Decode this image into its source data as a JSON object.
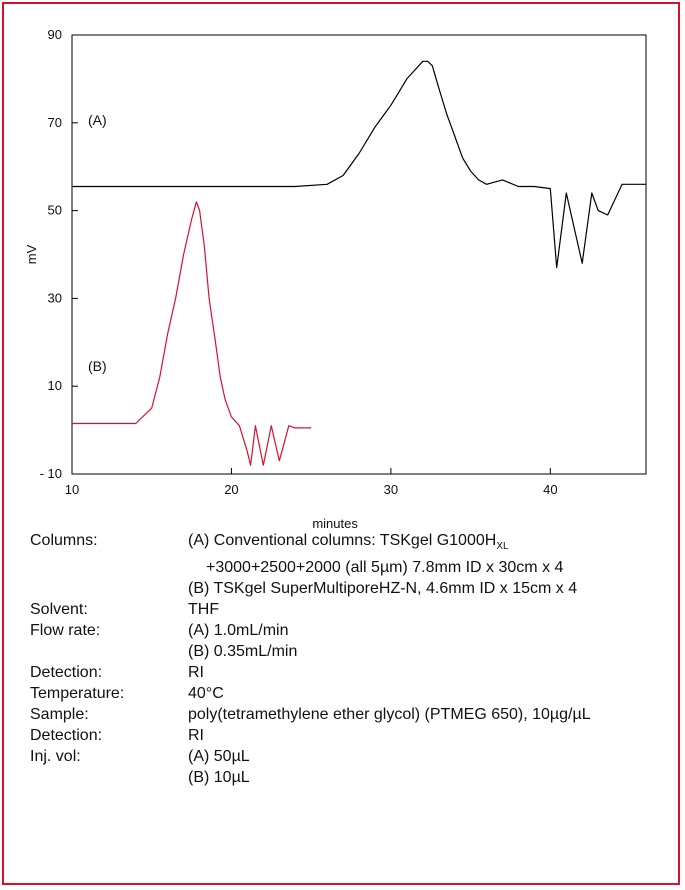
{
  "chart_data": {
    "type": "line",
    "xlabel": "minutes",
    "ylabel": "mV",
    "xlim": [
      10,
      46
    ],
    "ylim": [
      -10,
      90
    ],
    "x_ticks": [
      "10",
      "20",
      "30",
      "40"
    ],
    "y_ticks": [
      "90",
      "70",
      "50",
      "30",
      "10",
      "- 10"
    ],
    "grid": false,
    "annotations": [
      "(A)",
      "(B)"
    ],
    "colors": {
      "A": "#000000",
      "B": "#d9102d"
    },
    "series": [
      {
        "x": [
          10,
          14,
          16,
          18,
          20,
          22,
          24,
          26,
          27,
          28,
          29,
          30,
          30.5,
          31,
          31.5,
          32,
          32.3,
          32.6,
          33,
          33.5,
          34,
          34.5,
          35,
          35.5,
          36,
          37,
          38,
          39,
          40,
          40.4,
          41,
          42,
          42.6,
          43,
          43.6,
          44.5,
          46
        ],
        "values": [
          55.5,
          55.5,
          55.5,
          55.5,
          55.5,
          55.5,
          55.5,
          56,
          58,
          63,
          69,
          74,
          77,
          80,
          82,
          84,
          84,
          83,
          78,
          72,
          67,
          62,
          59,
          57,
          56,
          57,
          55.5,
          55.5,
          55,
          37,
          54,
          38,
          54,
          50,
          49,
          56,
          56
        ]
      },
      {
        "x": [
          10,
          14,
          15,
          15.5,
          16,
          16.5,
          17,
          17.5,
          17.8,
          18,
          18.3,
          18.6,
          19,
          19.3,
          19.6,
          20,
          20.5,
          21,
          21.2,
          21.5,
          22,
          22.5,
          23,
          23.3,
          23.6,
          24,
          25
        ],
        "values": [
          1.5,
          1.5,
          5,
          12,
          22,
          30,
          40,
          48,
          52,
          50,
          42,
          30,
          20,
          12,
          7,
          3,
          1,
          -5,
          -8,
          1,
          -8,
          1,
          -7,
          -3,
          1,
          0.5,
          0.5
        ]
      }
    ]
  },
  "conditions": {
    "columns_label": "Columns:",
    "columns_a_line1_pre": "(A) Conventional columns: TSKgel G1000H",
    "columns_a_line1_sub": "XL",
    "columns_a_line2": "+3000+2500+2000 (all 5µm) 7.8mm ID x 30cm x 4",
    "columns_b": "(B) TSKgel SuperMultiporeHZ-N, 4.6mm ID x 15cm x 4",
    "solvent_label": "Solvent:",
    "solvent": "THF",
    "flow_label": "Flow rate:",
    "flow_a": "(A) 1.0mL/min",
    "flow_b": "(B) 0.35mL/min",
    "detection_label": "Detection:",
    "detection": "RI",
    "temperature_label": "Temperature:",
    "temperature": "40°C",
    "sample_label": "Sample:",
    "sample": "poly(tetramethylene ether glycol) (PTMEG 650), 10µg/µL",
    "detection2_label": "Detection:",
    "detection2": "RI",
    "injvol_label": "Inj. vol:",
    "injvol_a": "(A) 50µL",
    "injvol_b": "(B) 10µL"
  }
}
